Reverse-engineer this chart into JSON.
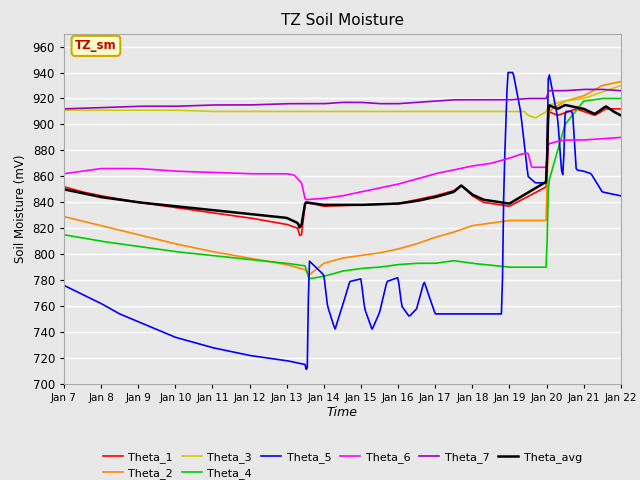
{
  "title": "TZ Soil Moisture",
  "xlabel": "Time",
  "ylabel": "Soil Moisture (mV)",
  "ylim": [
    700,
    970
  ],
  "yticks": [
    700,
    720,
    740,
    760,
    780,
    800,
    820,
    840,
    860,
    880,
    900,
    920,
    940,
    960
  ],
  "xtick_labels": [
    "Jan 7",
    "Jan 8",
    "Jan 9",
    "Jan 10",
    "Jan 11",
    "Jan 12",
    "Jan 13",
    "Jan 14",
    "Jan 15",
    "Jan 16",
    "Jan 17",
    "Jan 18",
    "Jan 19",
    "Jan 20",
    "Jan 21",
    "Jan 22"
  ],
  "legend_label": "TZ_sm",
  "legend_box_color": "#ffffcc",
  "legend_box_border": "#ccaa00",
  "series_colors": {
    "Theta_1": "#ff0000",
    "Theta_2": "#ff8800",
    "Theta_3": "#cccc00",
    "Theta_4": "#00cc00",
    "Theta_5": "#0000ff",
    "Theta_6": "#ff00ff",
    "Theta_7": "#9900cc",
    "Theta_avg": "#000000"
  },
  "bg_color": "#e8e8e8",
  "plot_bg_color": "#e8e8e8"
}
